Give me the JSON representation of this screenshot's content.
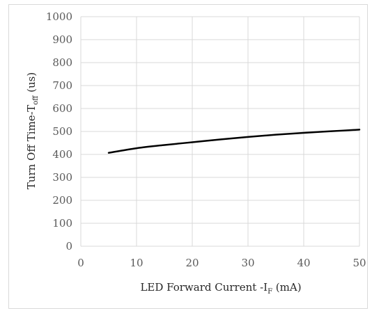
{
  "chart_data": {
    "type": "line",
    "title": "",
    "xlabel": {
      "main": "LED Forward Current -I",
      "sub": "F",
      "unit": " (mA)"
    },
    "ylabel": {
      "main": "Turn Off Time-T",
      "sub": "off",
      "unit": " (us)"
    },
    "xlim": [
      0,
      50
    ],
    "ylim": [
      0,
      1000
    ],
    "xticks": [
      0,
      10,
      20,
      30,
      40,
      50
    ],
    "yticks": [
      0,
      100,
      200,
      300,
      400,
      500,
      600,
      700,
      800,
      900,
      1000
    ],
    "grid": true,
    "legend": "none",
    "series": [
      {
        "color": "#000000",
        "x": [
          5,
          10,
          15,
          20,
          25,
          30,
          35,
          40,
          45,
          50
        ],
        "y": [
          407,
          427,
          441,
          453,
          465,
          476,
          486,
          494,
          501,
          508
        ]
      }
    ]
  }
}
